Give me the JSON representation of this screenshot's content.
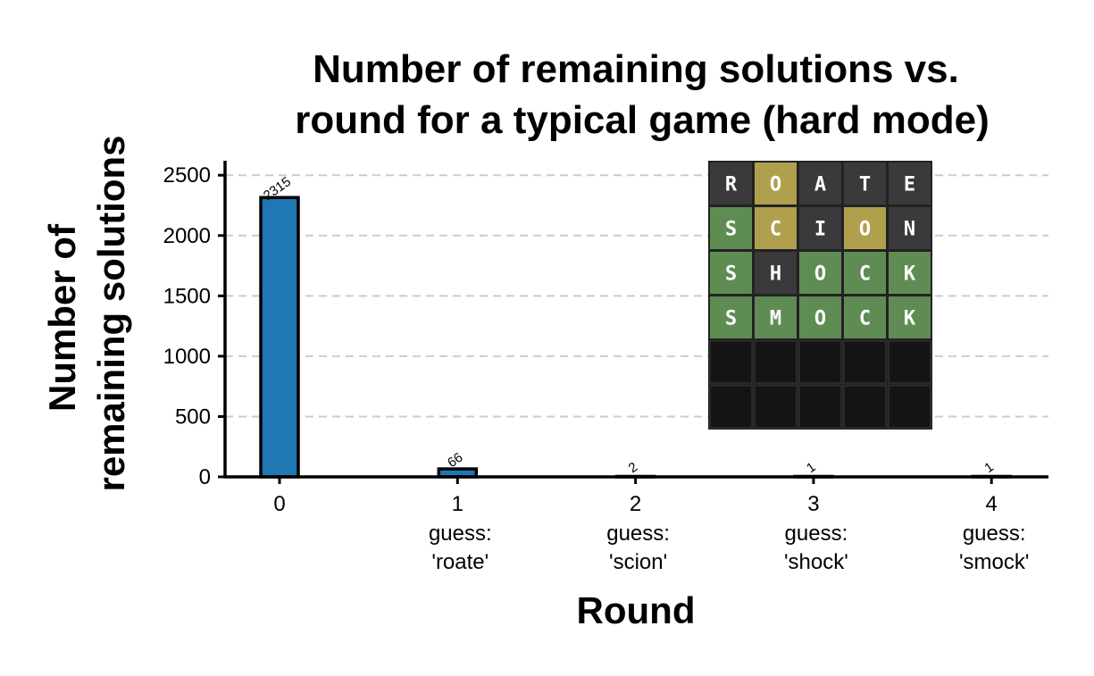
{
  "chart_data": {
    "type": "bar",
    "title_lines": [
      "Number of remaining solutions vs.",
      "round for a typical game (hard mode)"
    ],
    "xlabel": "Round",
    "ylabel_lines": [
      "Number of",
      "remaining solutions"
    ],
    "categories": [
      "0",
      "1",
      "2",
      "3",
      "4"
    ],
    "category_sublabels": [
      [],
      [
        "guess:",
        "'roate'"
      ],
      [
        "guess:",
        "'scion'"
      ],
      [
        "guess:",
        "'shock'"
      ],
      [
        "guess:",
        "'smock'"
      ]
    ],
    "values": [
      2315,
      66,
      2,
      1,
      1
    ],
    "data_labels": [
      "2315",
      "66",
      "2",
      "1",
      "1"
    ],
    "ylim": [
      0,
      2620
    ],
    "yticks": [
      0,
      500,
      1000,
      1500,
      2000,
      2500
    ],
    "grid": "horizontal dashed",
    "bar_color": "#1f77b4"
  },
  "board": {
    "rows": [
      [
        {
          "l": "R",
          "s": "absent"
        },
        {
          "l": "O",
          "s": "present"
        },
        {
          "l": "A",
          "s": "absent"
        },
        {
          "l": "T",
          "s": "absent"
        },
        {
          "l": "E",
          "s": "absent"
        }
      ],
      [
        {
          "l": "S",
          "s": "correct"
        },
        {
          "l": "C",
          "s": "present"
        },
        {
          "l": "I",
          "s": "absent"
        },
        {
          "l": "O",
          "s": "present"
        },
        {
          "l": "N",
          "s": "absent"
        }
      ],
      [
        {
          "l": "S",
          "s": "correct"
        },
        {
          "l": "H",
          "s": "absent"
        },
        {
          "l": "O",
          "s": "correct"
        },
        {
          "l": "C",
          "s": "correct"
        },
        {
          "l": "K",
          "s": "correct"
        }
      ],
      [
        {
          "l": "S",
          "s": "correct"
        },
        {
          "l": "M",
          "s": "correct"
        },
        {
          "l": "O",
          "s": "correct"
        },
        {
          "l": "C",
          "s": "correct"
        },
        {
          "l": "K",
          "s": "correct"
        }
      ],
      [
        {
          "l": "",
          "s": "empty"
        },
        {
          "l": "",
          "s": "empty"
        },
        {
          "l": "",
          "s": "empty"
        },
        {
          "l": "",
          "s": "empty"
        },
        {
          "l": "",
          "s": "empty"
        }
      ],
      [
        {
          "l": "",
          "s": "empty"
        },
        {
          "l": "",
          "s": "empty"
        },
        {
          "l": "",
          "s": "empty"
        },
        {
          "l": "",
          "s": "empty"
        },
        {
          "l": "",
          "s": "empty"
        }
      ]
    ],
    "colors": {
      "correct": "#5f8c53",
      "present": "#b0a04e",
      "absent": "#3a3a3c",
      "empty": "#141414",
      "background": "#222222"
    }
  }
}
